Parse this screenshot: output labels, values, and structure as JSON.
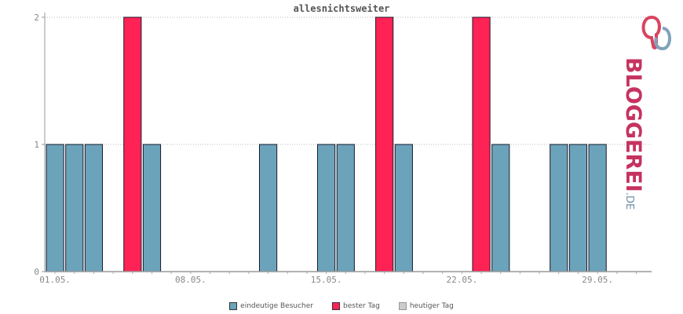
{
  "chart_data": {
    "type": "bar",
    "title": "allesnichtsweiter",
    "x_tick_labels": [
      "01.05.",
      "08.05.",
      "15.05.",
      "22.05.",
      "29.05."
    ],
    "y_tick_labels": [
      "0",
      "1",
      "2"
    ],
    "ylim": [
      0,
      2
    ],
    "grid": true,
    "legend_position": "bottom",
    "days": [
      "01.05.",
      "02.05.",
      "03.05.",
      "04.05.",
      "05.05.",
      "06.05.",
      "07.05.",
      "08.05.",
      "09.05.",
      "10.05.",
      "11.05.",
      "12.05.",
      "13.05.",
      "14.05.",
      "15.05.",
      "16.05.",
      "17.05.",
      "18.05.",
      "19.05.",
      "20.05.",
      "21.05.",
      "22.05.",
      "23.05.",
      "24.05.",
      "25.05.",
      "26.05.",
      "27.05.",
      "28.05.",
      "29.05.",
      "30.05.",
      "31.05."
    ],
    "values": [
      1,
      1,
      1,
      0,
      2,
      1,
      0,
      0,
      0,
      0,
      0,
      1,
      0,
      0,
      1,
      1,
      0,
      2,
      1,
      0,
      0,
      0,
      2,
      1,
      0,
      0,
      1,
      1,
      1,
      0,
      0
    ],
    "best_day": [
      false,
      false,
      false,
      false,
      true,
      false,
      false,
      false,
      false,
      false,
      false,
      false,
      false,
      false,
      false,
      false,
      false,
      true,
      false,
      false,
      false,
      false,
      true,
      false,
      false,
      false,
      false,
      false,
      false,
      false,
      false
    ],
    "series": [
      {
        "name": "eindeutige Besucher",
        "color": "#6ba3bb"
      },
      {
        "name": "bester Tag",
        "color": "#ff2255"
      },
      {
        "name": "heutiger Tag",
        "color": "#cccccc"
      }
    ]
  },
  "logo": {
    "text": "BLOGGEREI",
    "suffix": ".DE"
  }
}
